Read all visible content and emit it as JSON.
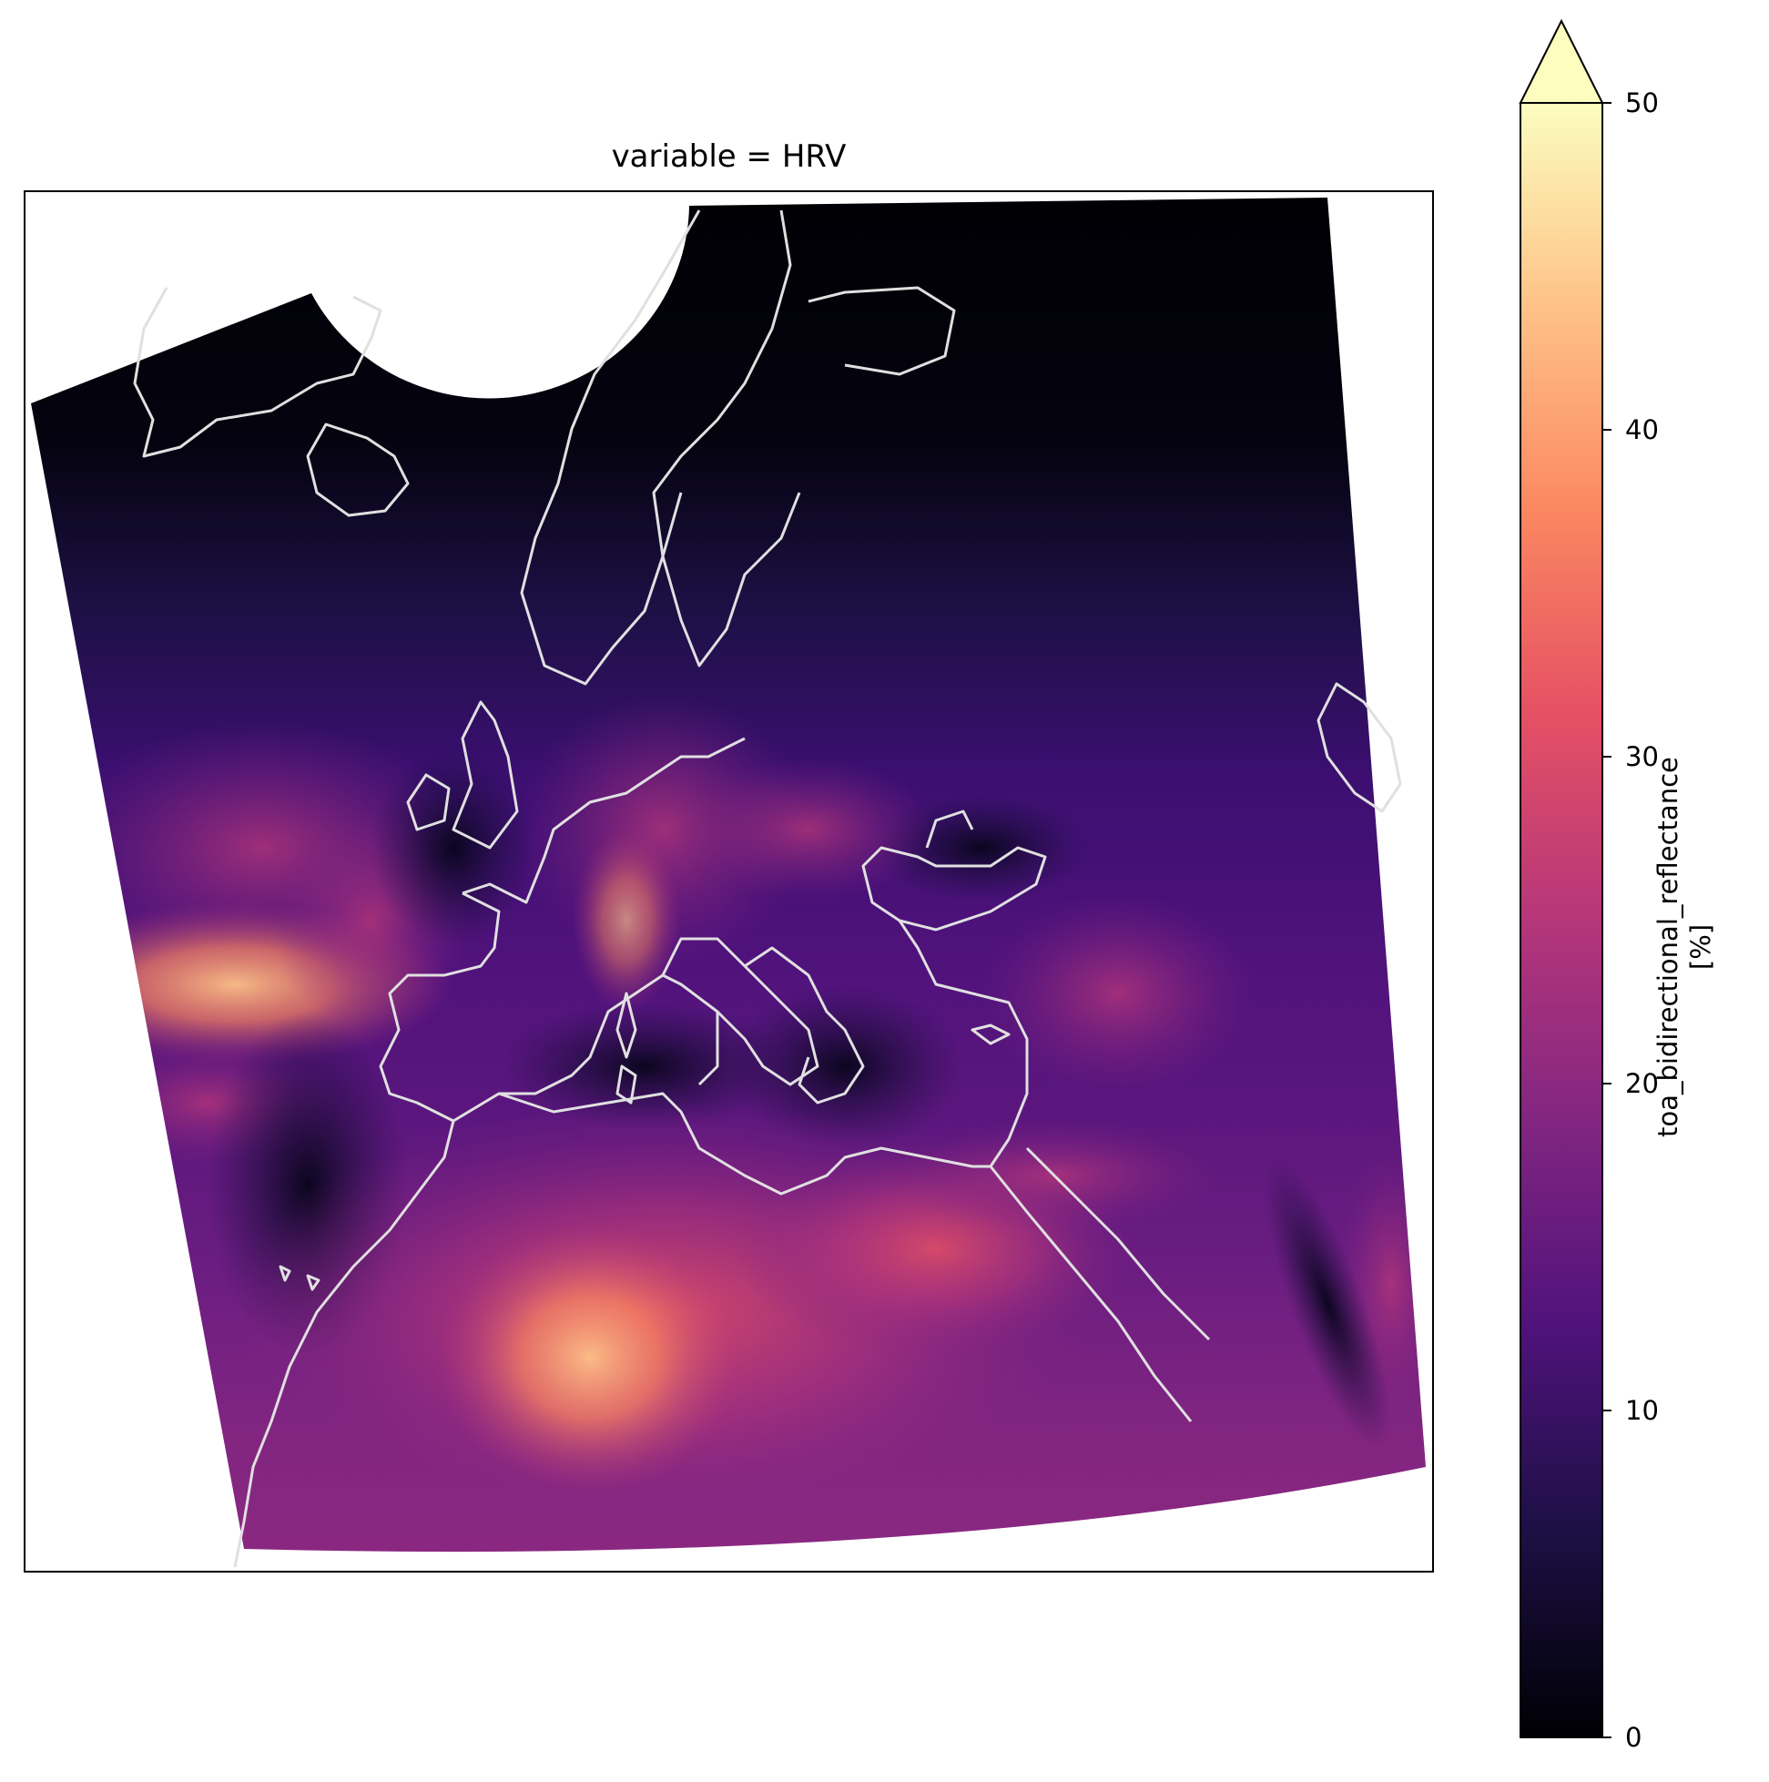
{
  "title": "variable = HRV",
  "colorbar": {
    "label": "toa_bidirectional_reflectance",
    "units": "[%]",
    "colormap": "magma",
    "range": [
      0,
      50
    ],
    "extend": "max",
    "ticks": [
      "0",
      "10",
      "20",
      "30",
      "40",
      "50"
    ],
    "colors": [
      "#000004",
      "#1c1044",
      "#4f127b",
      "#812581",
      "#b5367a",
      "#e55064",
      "#fb8761",
      "#fec287",
      "#fcfdbf"
    ]
  },
  "map": {
    "projection": "geostationary",
    "coastline_color": "#e0e0e0",
    "no_data_color": "#ffffff"
  }
}
